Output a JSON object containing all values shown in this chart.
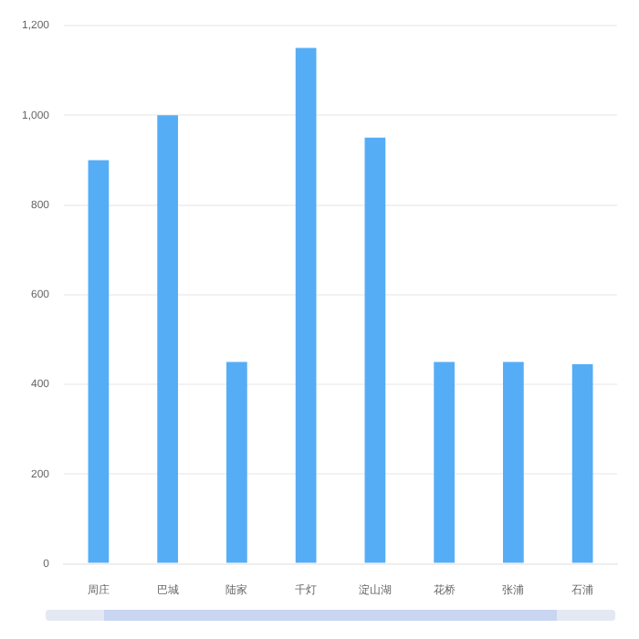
{
  "chart_data": {
    "type": "bar",
    "categories": [
      "周庄",
      "巴城",
      "陆家",
      "千灯",
      "淀山湖",
      "花桥",
      "张浦",
      "石浦"
    ],
    "values": [
      900,
      1000,
      450,
      1150,
      950,
      450,
      450,
      445
    ],
    "color": "#55adf6",
    "ylim": [
      0,
      1200
    ],
    "yticks": [
      {
        "value": 0,
        "label": "0"
      },
      {
        "value": 200,
        "label": "200"
      },
      {
        "value": 400,
        "label": "400"
      },
      {
        "value": 600,
        "label": "600"
      },
      {
        "value": 800,
        "label": "800"
      },
      {
        "value": 1000,
        "label": "1,000"
      },
      {
        "value": 1200,
        "label": "1,200"
      }
    ],
    "grid": "y"
  }
}
